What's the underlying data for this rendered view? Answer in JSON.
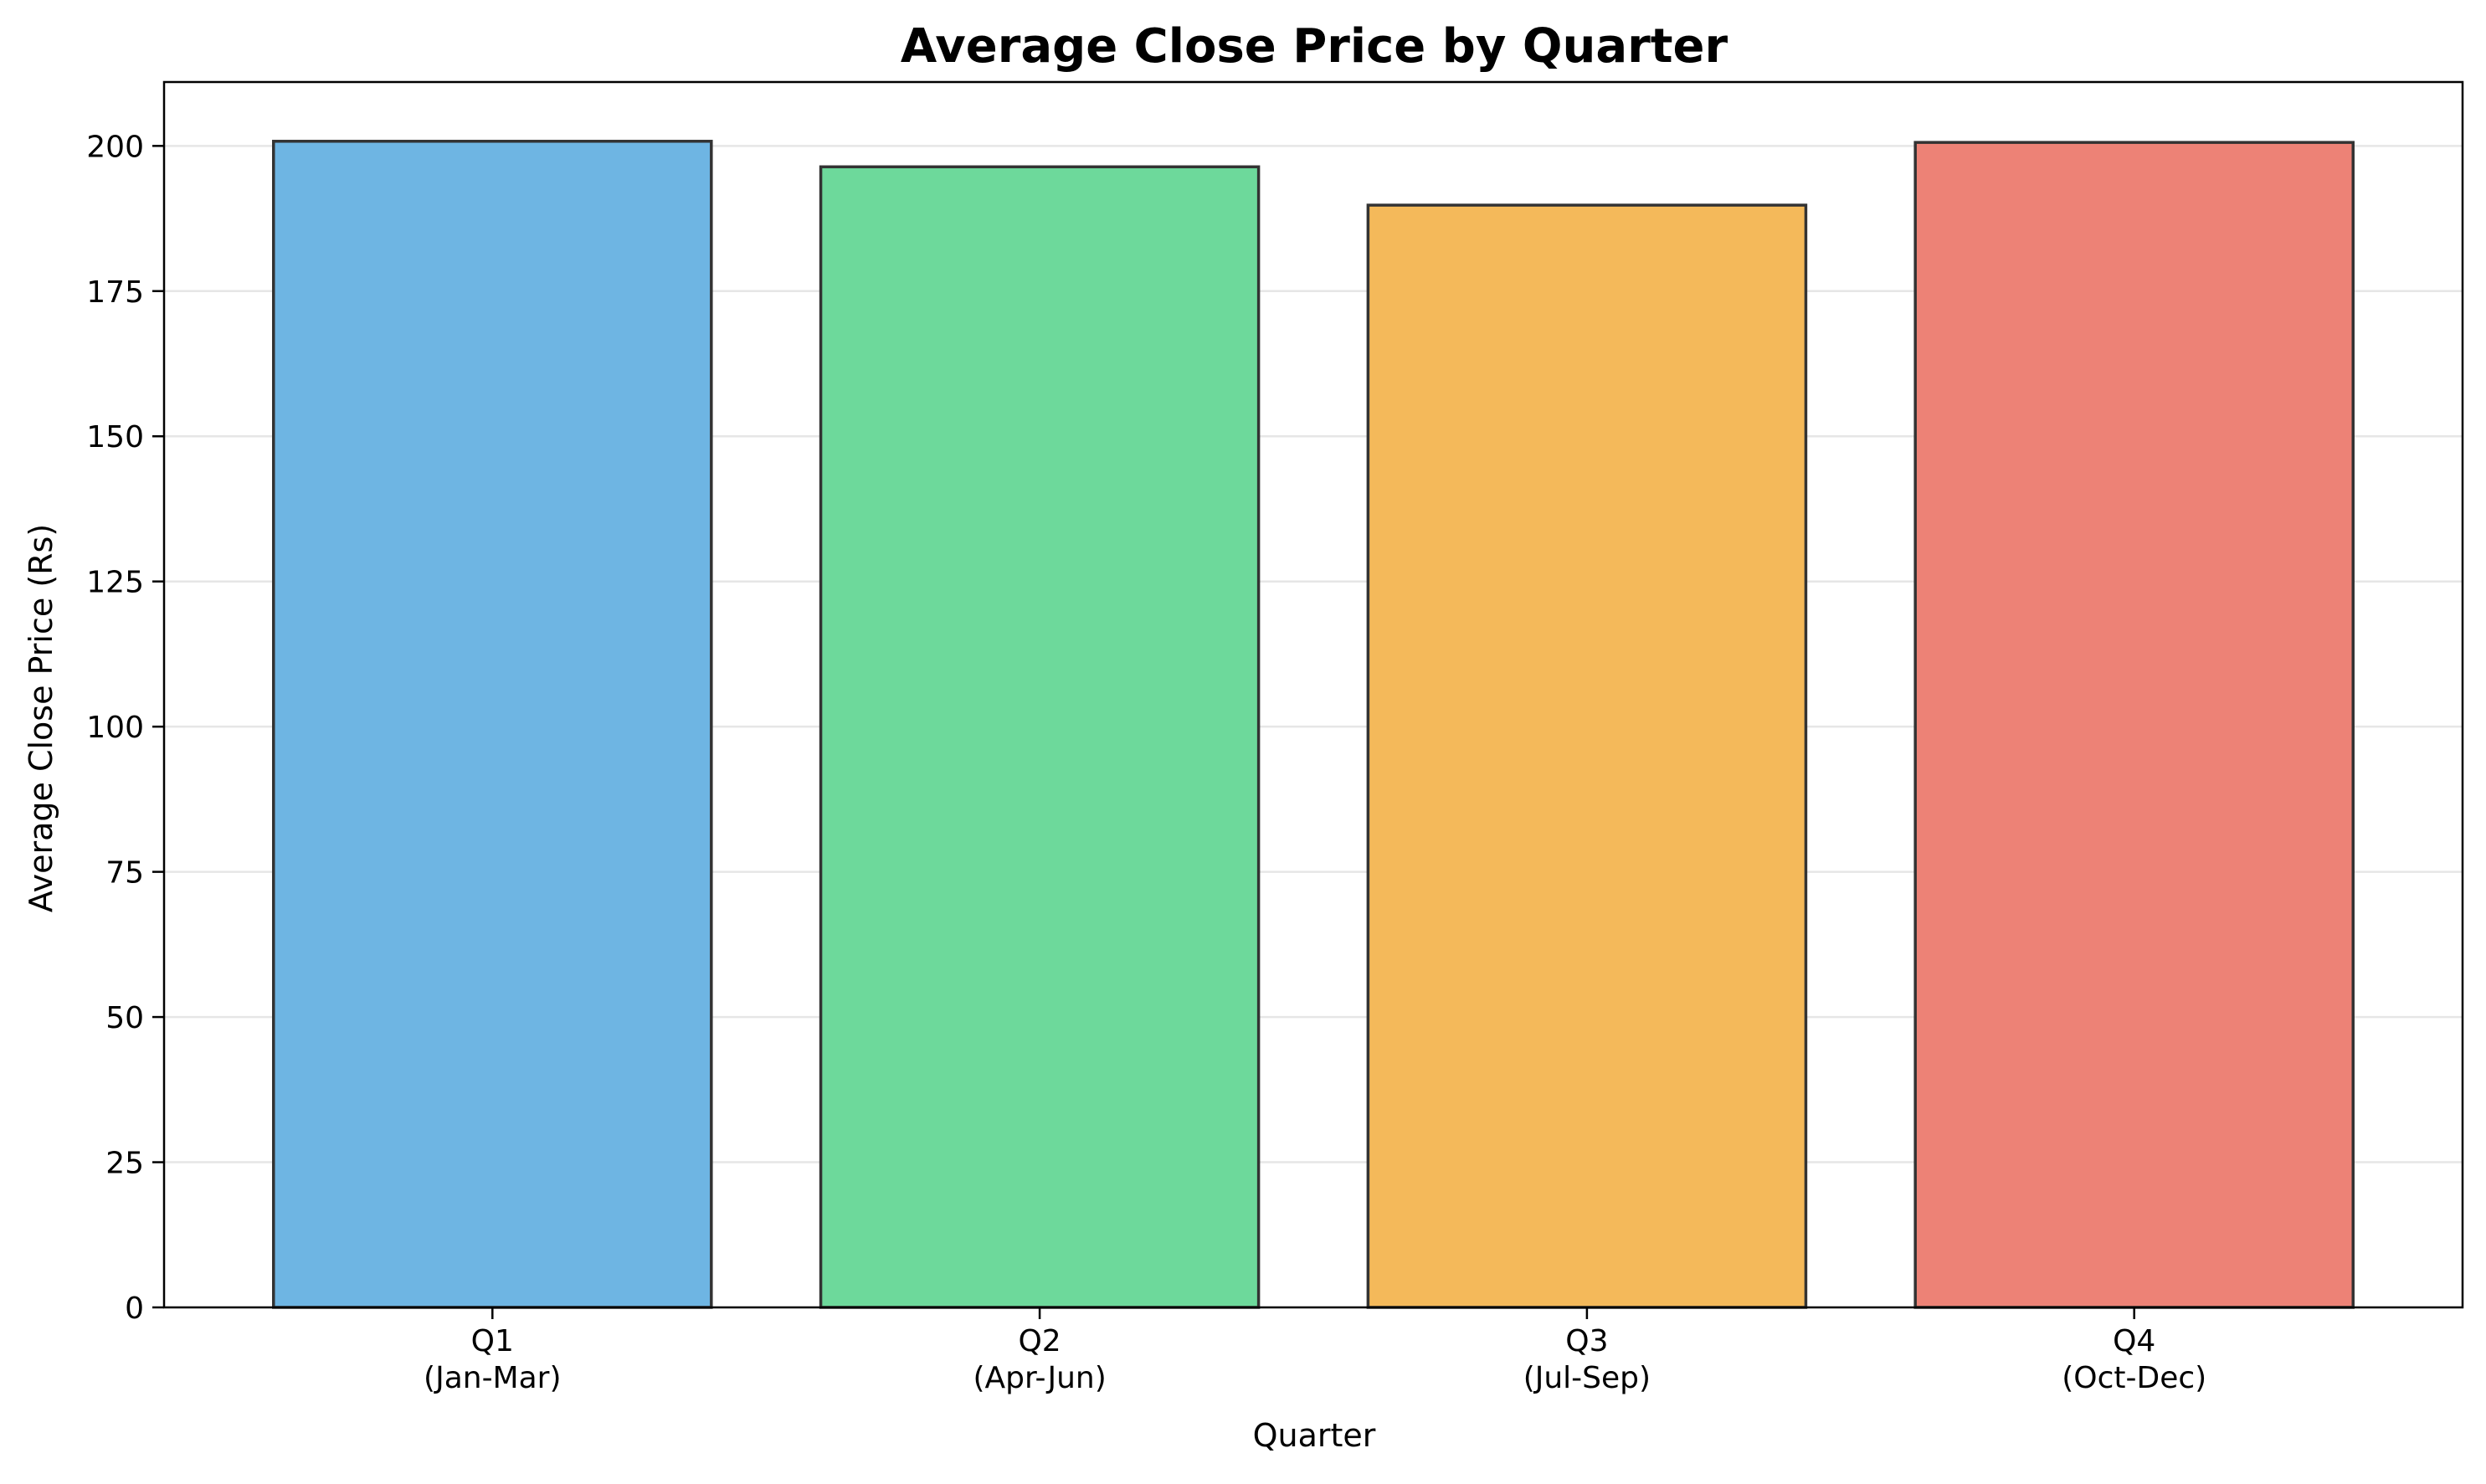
{
  "chart_data": {
    "type": "bar",
    "title": "Average Close Price by Quarter",
    "xlabel": "Quarter",
    "ylabel": "Average Close Price (Rs)",
    "categories": [
      {
        "line1": "Q1",
        "line2": "(Jan-Mar)"
      },
      {
        "line1": "Q2",
        "line2": "(Apr-Jun)"
      },
      {
        "line1": "Q3",
        "line2": "(Jul-Sep)"
      },
      {
        "line1": "Q4",
        "line2": "(Oct-Dec)"
      }
    ],
    "values": [
      200.8,
      196.4,
      189.8,
      200.6
    ],
    "colors": [
      "#6eb5e3",
      "#6dd99b",
      "#f4b95a",
      "#ed8276"
    ],
    "ylim": [
      0,
      211
    ],
    "yticks": [
      0,
      25,
      50,
      75,
      100,
      125,
      150,
      175,
      200
    ],
    "grid": "horizontal",
    "legend": "none"
  }
}
